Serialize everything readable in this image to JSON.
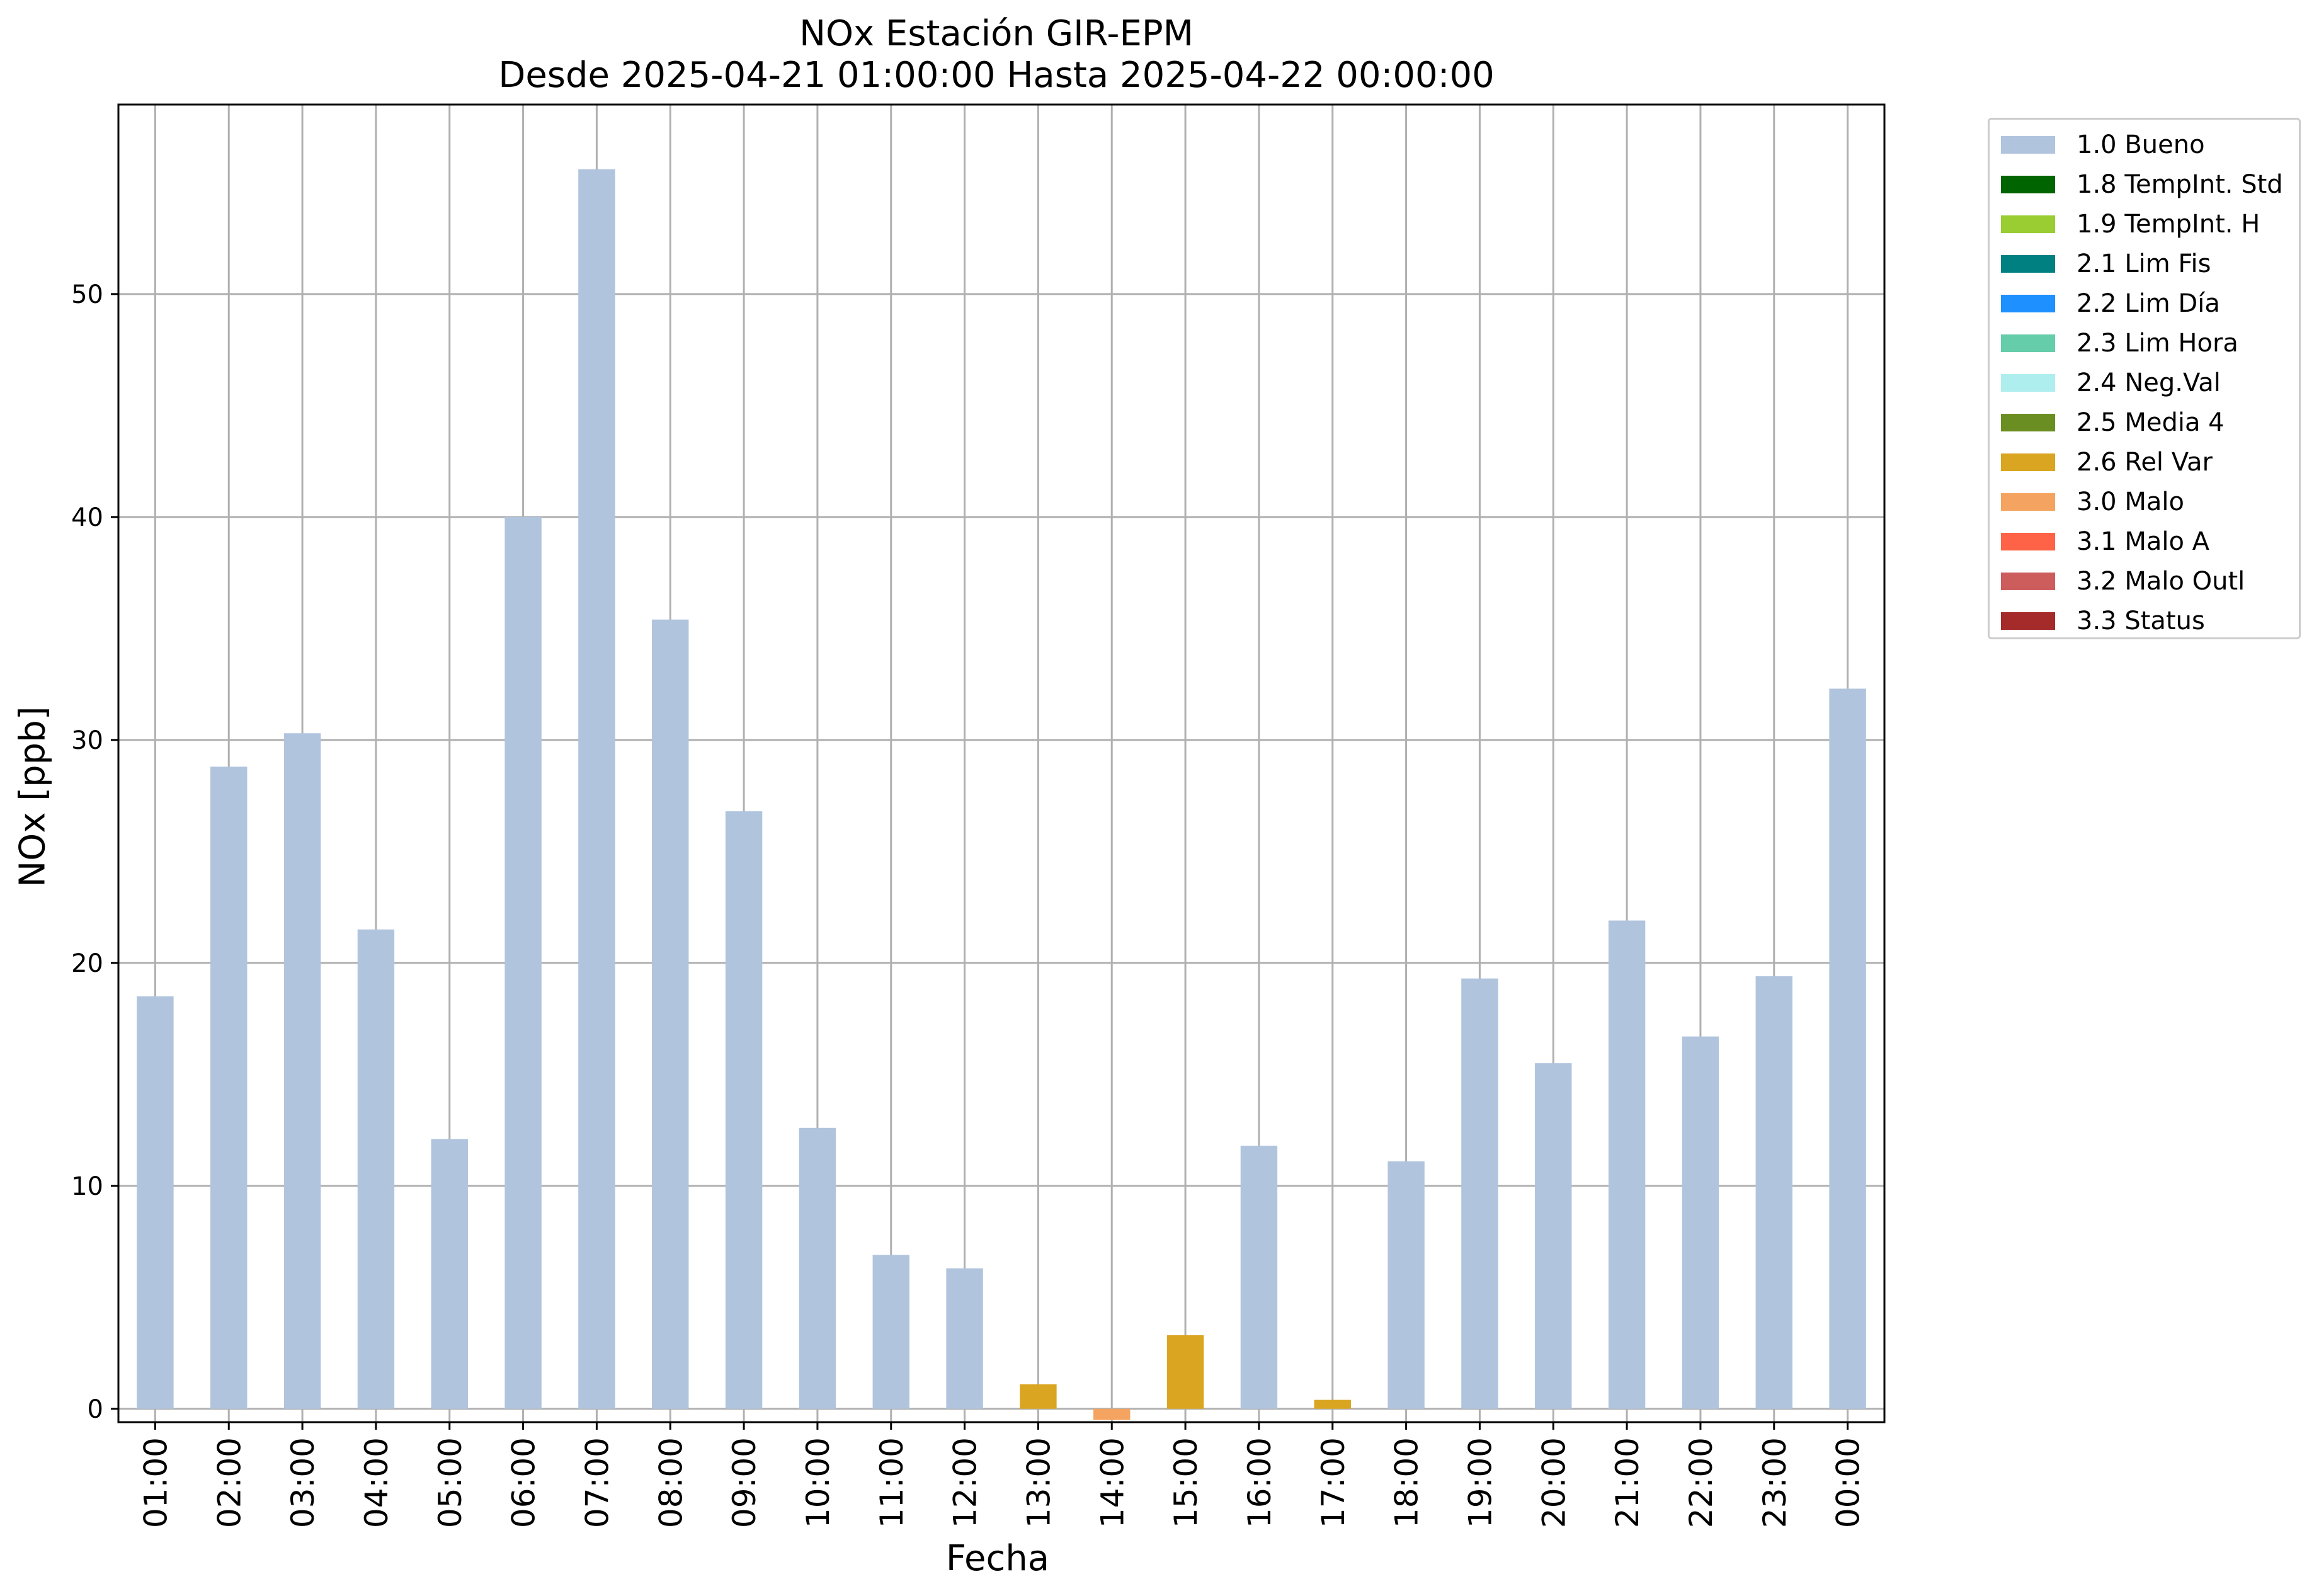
{
  "chart_data": {
    "type": "bar",
    "title": "NOx Estación GIR-EPM",
    "subtitle": "Desde 2025-04-21 01:00:00 Hasta 2025-04-22 00:00:00",
    "xlabel": "Fecha",
    "ylabel": "NOx [ppb]",
    "ylim": [
      -0.6,
      58.5
    ],
    "yticks": [
      0,
      10,
      20,
      30,
      40,
      50
    ],
    "grid": true,
    "legend_position": "outside-top-right",
    "categories": [
      "01:00",
      "02:00",
      "03:00",
      "04:00",
      "05:00",
      "06:00",
      "07:00",
      "08:00",
      "09:00",
      "10:00",
      "11:00",
      "12:00",
      "13:00",
      "14:00",
      "15:00",
      "16:00",
      "17:00",
      "18:00",
      "19:00",
      "20:00",
      "21:00",
      "22:00",
      "23:00",
      "00:00"
    ],
    "values": [
      18.5,
      28.8,
      30.3,
      21.5,
      12.1,
      40.0,
      55.6,
      35.4,
      26.8,
      12.6,
      6.9,
      6.3,
      1.1,
      -0.5,
      3.3,
      11.8,
      0.4,
      11.1,
      19.3,
      15.5,
      21.9,
      16.7,
      19.4,
      32.3
    ],
    "flags": [
      "1.0 Bueno",
      "1.0 Bueno",
      "1.0 Bueno",
      "1.0 Bueno",
      "1.0 Bueno",
      "1.0 Bueno",
      "1.0 Bueno",
      "1.0 Bueno",
      "1.0 Bueno",
      "1.0 Bueno",
      "1.0 Bueno",
      "1.0 Bueno",
      "2.6 Rel Var",
      "3.0 Malo",
      "2.6 Rel Var",
      "1.0 Bueno",
      "2.6 Rel Var",
      "1.0 Bueno",
      "1.0 Bueno",
      "1.0 Bueno",
      "1.0 Bueno",
      "1.0 Bueno",
      "1.0 Bueno",
      "1.0 Bueno"
    ],
    "legend": [
      {
        "label": "1.0 Bueno",
        "color": "#b0c4de"
      },
      {
        "label": "1.8 TempInt. Std",
        "color": "#006400"
      },
      {
        "label": "1.9 TempInt. H",
        "color": "#9acd32"
      },
      {
        "label": "2.1 Lim Fis",
        "color": "#008080"
      },
      {
        "label": "2.2 Lim Día",
        "color": "#1e90ff"
      },
      {
        "label": "2.3 Lim Hora",
        "color": "#66cdaa"
      },
      {
        "label": "2.4 Neg.Val",
        "color": "#afeeee"
      },
      {
        "label": "2.5 Media 4",
        "color": "#6b8e23"
      },
      {
        "label": "2.6 Rel Var",
        "color": "#daa520"
      },
      {
        "label": "3.0 Malo",
        "color": "#f4a460"
      },
      {
        "label": "3.1 Malo A",
        "color": "#ff6347"
      },
      {
        "label": "3.2 Malo Outl",
        "color": "#cd5c5c"
      },
      {
        "label": "3.3 Status",
        "color": "#a52a2a"
      }
    ]
  }
}
